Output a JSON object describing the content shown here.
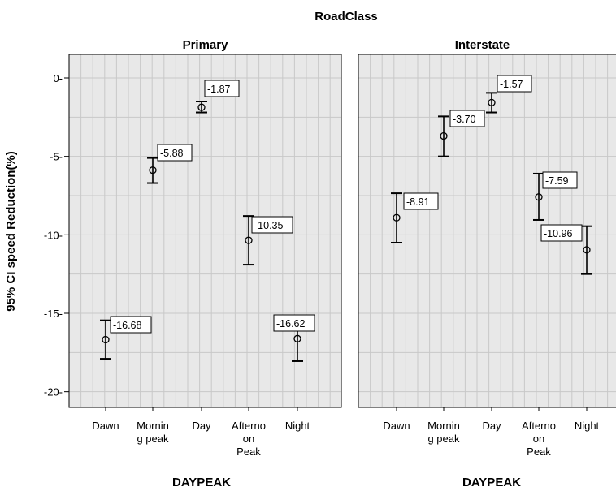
{
  "chart_data": {
    "type": "errorbar",
    "title": "RoadClass",
    "ylabel": "95% CI speed Reduction(%)",
    "xlabel": "DAYPEAK",
    "ylim": [
      -21,
      1.5
    ],
    "yticks": [
      0,
      -5,
      -10,
      -15,
      -20
    ],
    "ytick_labels": [
      "0-",
      "-5-",
      "-10-",
      "-15-",
      "-20-"
    ],
    "categories": [
      [
        "Dawn"
      ],
      [
        "Mornin",
        "g peak"
      ],
      [
        "Day"
      ],
      [
        "Afterno",
        "on",
        "Peak"
      ],
      [
        "Night"
      ]
    ],
    "grid": true,
    "panels": [
      {
        "name": "Primary",
        "points": [
          {
            "label": "-16.68",
            "mean": -16.68,
            "lower": -17.9,
            "upper": -15.45
          },
          {
            "label": "-5.88",
            "mean": -5.88,
            "lower": -6.7,
            "upper": -5.1
          },
          {
            "label": "-1.87",
            "mean": -1.87,
            "lower": -2.2,
            "upper": -1.5
          },
          {
            "label": "-10.35",
            "mean": -10.35,
            "lower": -11.9,
            "upper": -8.8
          },
          {
            "label": "-16.62",
            "mean": -16.62,
            "lower": -18.05,
            "upper": -15.2
          }
        ]
      },
      {
        "name": "Interstate",
        "points": [
          {
            "label": "-8.91",
            "mean": -8.91,
            "lower": -10.5,
            "upper": -7.35
          },
          {
            "label": "-3.70",
            "mean": -3.7,
            "lower": -5.0,
            "upper": -2.45
          },
          {
            "label": "-1.57",
            "mean": -1.57,
            "lower": -2.2,
            "upper": -0.95
          },
          {
            "label": "-7.59",
            "mean": -7.59,
            "lower": -9.05,
            "upper": -6.1
          },
          {
            "label": "-10.96",
            "mean": -10.96,
            "lower": -12.5,
            "upper": -9.45
          }
        ]
      }
    ],
    "colors": {
      "panel_background": "#e8e8e8",
      "grid": "#c8c8c8",
      "frame": "#000000",
      "marks": "#000000"
    }
  }
}
